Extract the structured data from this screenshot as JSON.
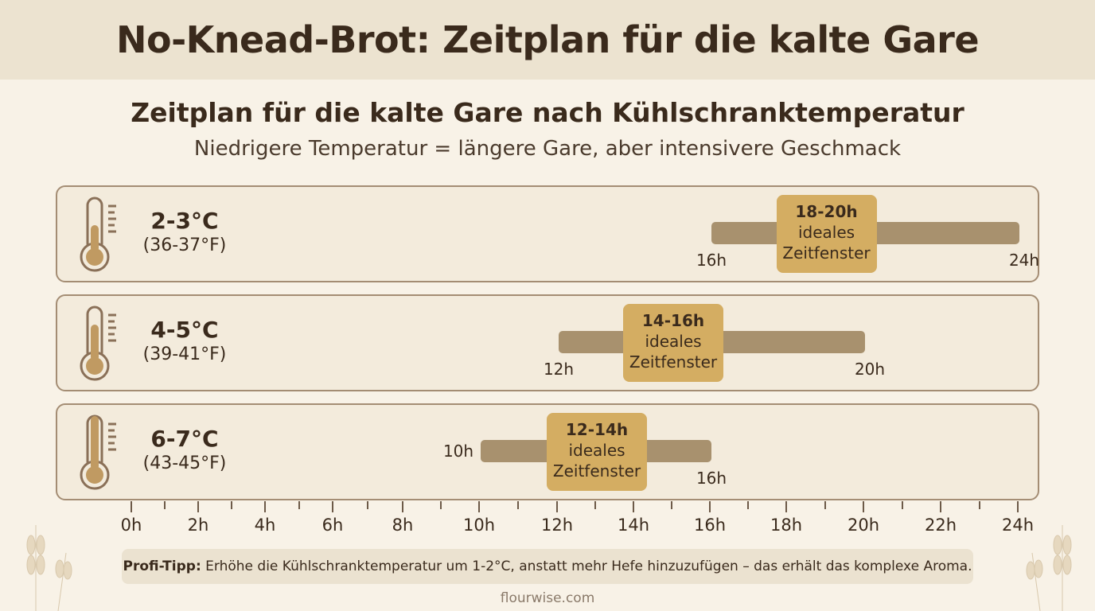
{
  "header": {
    "title": "No-Knead-Brot: Zeitplan für die kalte Gare"
  },
  "chart_data": {
    "type": "range-bar",
    "title": "Zeitplan für die kalte Gare nach Kühlschranktemperatur",
    "subtitle": "Niedrigere Temperatur = längere Gare, aber intensivere Geschmack",
    "x_ticks": [
      "0h",
      "2h",
      "4h",
      "6h",
      "8h",
      "10h",
      "12h",
      "14h",
      "16h",
      "18h",
      "20h",
      "22h",
      "24h"
    ],
    "xlim": [
      0,
      24
    ],
    "rows": [
      {
        "celsius": "2-3°C",
        "fahrenheit": "(36-37°F)",
        "range": [
          16,
          24
        ],
        "start_label": "16h",
        "end_label": "24h",
        "ideal": [
          18,
          20
        ],
        "ideal_label": "18-20h",
        "ideal_text1": "ideales",
        "ideal_text2": "Zeitfenster"
      },
      {
        "celsius": "4-5°C",
        "fahrenheit": "(39-41°F)",
        "range": [
          12,
          20
        ],
        "start_label": "12h",
        "end_label": "20h",
        "ideal": [
          14,
          16
        ],
        "ideal_label": "14-16h",
        "ideal_text1": "ideales",
        "ideal_text2": "Zeitfenster"
      },
      {
        "celsius": "6-7°C",
        "fahrenheit": "(43-45°F)",
        "range": [
          10,
          16
        ],
        "start_label": "10h",
        "end_label": "16h",
        "ideal": [
          12,
          14
        ],
        "ideal_label": "12-14h",
        "ideal_text1": "ideales",
        "ideal_text2": "Zeitfenster"
      }
    ],
    "colors": {
      "bar": "#a8916e",
      "ideal": "#d4ad62",
      "thermometer_fill": "#c09a62"
    }
  },
  "tip": {
    "label": "Profi-Tipp:",
    "text": " Erhöhe die Kühlschranktemperatur um 1-2°C, anstatt mehr Hefe hinzuzufügen – das erhält das komplexe Aroma."
  },
  "footer": {
    "text": "flourwise.com"
  }
}
